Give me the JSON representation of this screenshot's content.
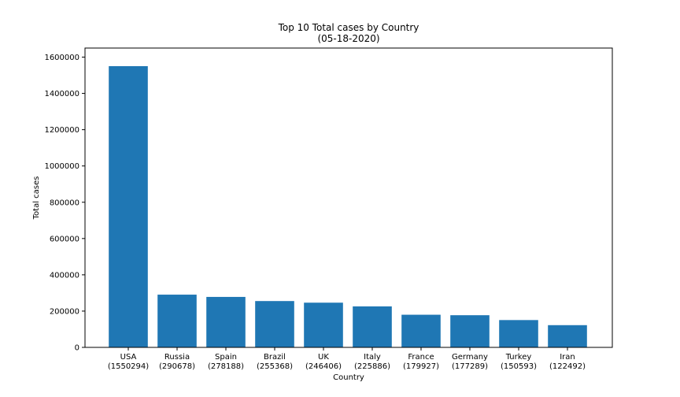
{
  "chart_data": {
    "type": "bar",
    "title": "Top 10 Total cases by Country",
    "subtitle": "(05-18-2020)",
    "xlabel": "Country",
    "ylabel": "Total cases",
    "ylim": [
      0,
      1650000
    ],
    "yticks": [
      0,
      200000,
      400000,
      600000,
      800000,
      1000000,
      1200000,
      1400000,
      1600000
    ],
    "grid": false,
    "bar_color": "#1f77b4",
    "categories": [
      {
        "name": "USA",
        "count_label": "(1550294)"
      },
      {
        "name": "Russia",
        "count_label": "(290678)"
      },
      {
        "name": "Spain",
        "count_label": "(278188)"
      },
      {
        "name": "Brazil",
        "count_label": "(255368)"
      },
      {
        "name": "UK",
        "count_label": "(246406)"
      },
      {
        "name": "Italy",
        "count_label": "(225886)"
      },
      {
        "name": "France",
        "count_label": "(179927)"
      },
      {
        "name": "Germany",
        "count_label": "(177289)"
      },
      {
        "name": "Turkey",
        "count_label": "(150593)"
      },
      {
        "name": "Iran",
        "count_label": "(122492)"
      }
    ],
    "values": [
      1550294,
      290678,
      278188,
      255368,
      246406,
      225886,
      179927,
      177289,
      150593,
      122492
    ]
  }
}
